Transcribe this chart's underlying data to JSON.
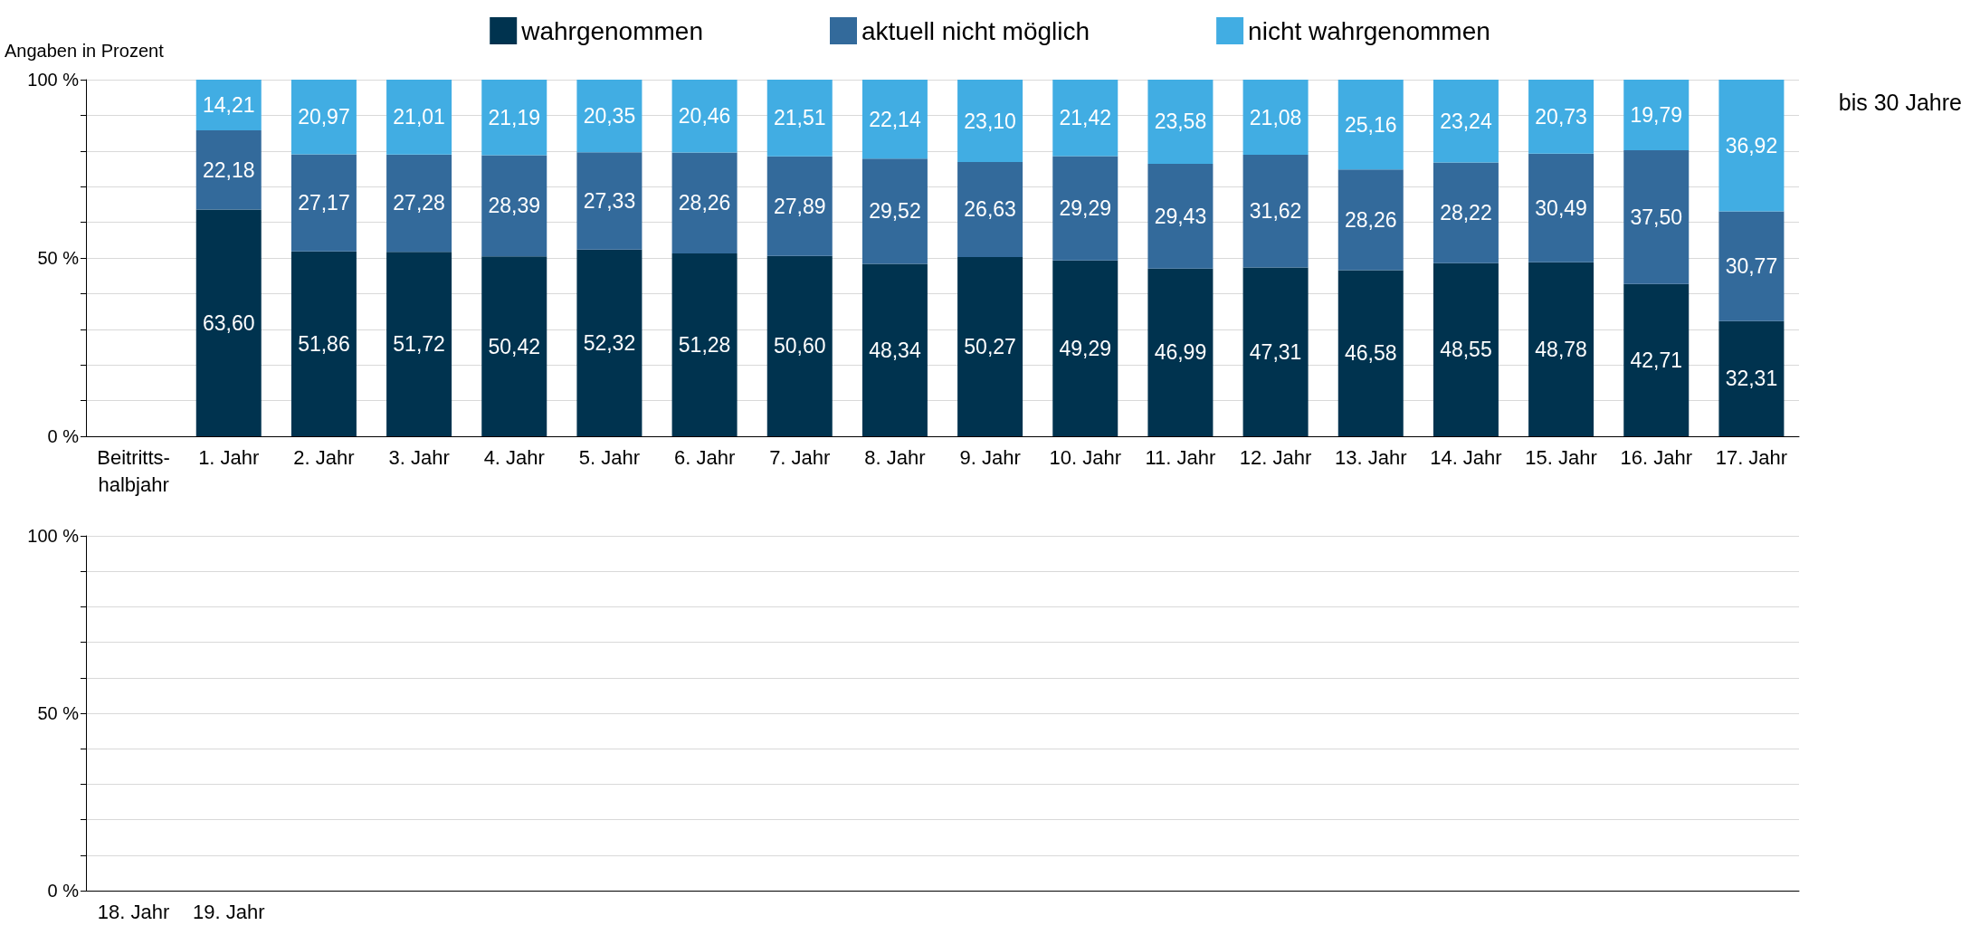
{
  "chart_data": [
    {
      "type": "bar",
      "stacked": true,
      "ylabel": "Angaben in Prozent",
      "annotations": [
        "bis 30 Jahre"
      ],
      "legend": "top",
      "grid": true,
      "categories": [
        "Beitritts-\nhalbjahr",
        "1. Jahr",
        "2. Jahr",
        "3. Jahr",
        "4. Jahr",
        "5. Jahr",
        "6. Jahr",
        "7. Jahr",
        "8. Jahr",
        "9. Jahr",
        "10. Jahr",
        "11. Jahr",
        "12. Jahr",
        "13. Jahr",
        "14. Jahr",
        "15. Jahr",
        "16. Jahr",
        "17. Jahr"
      ],
      "ylim": [
        0,
        100
      ],
      "yticks": [
        {
          "value": 0,
          "label": "0 %"
        },
        {
          "value": 10,
          "label": null
        },
        {
          "value": 20,
          "label": null
        },
        {
          "value": 30,
          "label": null
        },
        {
          "value": 40,
          "label": null
        },
        {
          "value": 50,
          "label": "50 %"
        },
        {
          "value": 60,
          "label": null
        },
        {
          "value": 70,
          "label": null
        },
        {
          "value": 80,
          "label": null
        },
        {
          "value": 90,
          "label": null
        },
        {
          "value": 100,
          "label": "100 %"
        }
      ],
      "series": [
        {
          "name": "wahrgenommen",
          "color": "#00334f",
          "values": [
            null,
            63.6,
            51.86,
            51.72,
            50.42,
            52.32,
            51.28,
            50.6,
            48.34,
            50.27,
            49.29,
            46.99,
            47.31,
            46.58,
            48.55,
            48.78,
            42.71,
            32.31
          ],
          "value_labels": [
            null,
            "63,60",
            "51,86",
            "51,72",
            "50,42",
            "52,32",
            "51,28",
            "50,60",
            "48,34",
            "50,27",
            "49,29",
            "46,99",
            "47,31",
            "46,58",
            "48,55",
            "48,78",
            "42,71",
            "32,31"
          ]
        },
        {
          "name": "aktuell nicht möglich",
          "color": "#336a9b",
          "values": [
            null,
            22.18,
            27.17,
            27.28,
            28.39,
            27.33,
            28.26,
            27.89,
            29.52,
            26.63,
            29.29,
            29.43,
            31.62,
            28.26,
            28.22,
            30.49,
            37.5,
            30.77
          ],
          "value_labels": [
            null,
            "22,18",
            "27,17",
            "27,28",
            "28,39",
            "27,33",
            "28,26",
            "27,89",
            "29,52",
            "26,63",
            "29,29",
            "29,43",
            "31,62",
            "28,26",
            "28,22",
            "30,49",
            "37,50",
            "30,77"
          ]
        },
        {
          "name": "nicht wahrgenommen",
          "color": "#41ade3",
          "values": [
            null,
            14.21,
            20.97,
            21.01,
            21.19,
            20.35,
            20.46,
            21.51,
            22.14,
            23.1,
            21.42,
            23.58,
            21.08,
            25.16,
            23.24,
            20.73,
            19.79,
            36.92
          ],
          "value_labels": [
            null,
            "14,21",
            "20,97",
            "21,01",
            "21,19",
            "20,35",
            "20,46",
            "21,51",
            "22,14",
            "23,10",
            "21,42",
            "23,58",
            "21,08",
            "25,16",
            "23,24",
            "20,73",
            "19,79",
            "36,92"
          ]
        }
      ]
    },
    {
      "type": "bar",
      "stacked": true,
      "grid": true,
      "categories": [
        "18. Jahr",
        "19. Jahr",
        null,
        null,
        null,
        null,
        null,
        null,
        null,
        null,
        null,
        null,
        null,
        null,
        null,
        null,
        null,
        null
      ],
      "ylim": [
        0,
        100
      ],
      "yticks": [
        {
          "value": 0,
          "label": "0 %"
        },
        {
          "value": 10,
          "label": null
        },
        {
          "value": 20,
          "label": null
        },
        {
          "value": 30,
          "label": null
        },
        {
          "value": 40,
          "label": null
        },
        {
          "value": 50,
          "label": "50 %"
        },
        {
          "value": 60,
          "label": null
        },
        {
          "value": 70,
          "label": null
        },
        {
          "value": 80,
          "label": null
        },
        {
          "value": 90,
          "label": null
        },
        {
          "value": 100,
          "label": "100 %"
        }
      ],
      "series": [
        {
          "color": "#00334f",
          "values": [
            null,
            null,
            null,
            null,
            null,
            null,
            null,
            null,
            null,
            null,
            null,
            null,
            null,
            null,
            null,
            null,
            null,
            null
          ]
        },
        {
          "color": "#336a9b",
          "values": [
            null,
            null,
            null,
            null,
            null,
            null,
            null,
            null,
            null,
            null,
            null,
            null,
            null,
            null,
            null,
            null,
            null,
            null
          ]
        },
        {
          "color": "#41ade3",
          "values": [
            null,
            null,
            null,
            null,
            null,
            null,
            null,
            null,
            null,
            null,
            null,
            null,
            null,
            null,
            null,
            null,
            null,
            null
          ]
        }
      ]
    }
  ]
}
